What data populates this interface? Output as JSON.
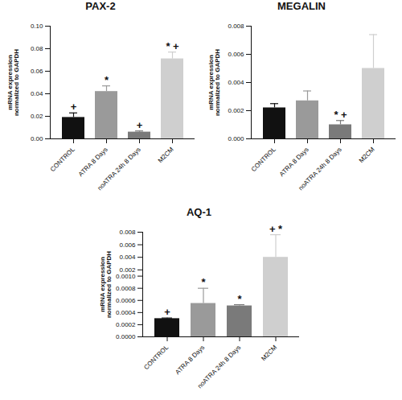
{
  "chart_data": [
    {
      "type": "bar",
      "title": "PAX-2",
      "y_label": "mRNA expression normalized to GAPDH",
      "categories": [
        "CONTROL",
        "ATRA 8 Days",
        "noATRA 24h 8 Days",
        "M2CM"
      ],
      "values": [
        0.019,
        0.042,
        0.006,
        0.071
      ],
      "errors": [
        0.004,
        0.005,
        0.001,
        0.006
      ],
      "annotations": [
        "+",
        "*",
        "+",
        "* +"
      ],
      "colors": [
        "#111111",
        "#9a9a9a",
        "#7a7a7a",
        "#cfcfcf"
      ],
      "ylim": [
        0,
        0.1
      ],
      "yticks": [
        {
          "value": 0,
          "label": "0.00"
        },
        0.02,
        0.04,
        0.06,
        0.08,
        {
          "value": 0.1,
          "label": "0.10"
        }
      ]
    },
    {
      "type": "bar",
      "title": "MEGALIN",
      "y_label": "mRNA expression normalized to GAPDH",
      "categories": [
        "CONTROL",
        "ATRA 8 Days",
        "noATRA 24h 8 Days",
        "M2CM"
      ],
      "values": [
        0.0022,
        0.0027,
        0.001,
        0.005
      ],
      "errors": [
        0.0003,
        0.0007,
        0.0003,
        0.0024
      ],
      "annotations": [
        null,
        null,
        "* +",
        null
      ],
      "colors": [
        "#111111",
        "#9a9a9a",
        "#7a7a7a",
        "#cfcfcf"
      ],
      "ylim": [
        0,
        0.008
      ],
      "yticks": [
        {
          "value": 0,
          "label": "0.000"
        },
        0.002,
        0.004,
        0.006,
        0.008
      ]
    },
    {
      "type": "bar",
      "title": "AQ-1",
      "y_label": "mRNA expression normalized to GAPDH",
      "categories": [
        "CONTROL",
        "ATRA 8 Days",
        "noATRA 24h 8 Days",
        "M2CM"
      ],
      "values": [
        0.0003,
        0.00055,
        0.00051,
        0.004
      ],
      "errors": [
        1e-05,
        0.00025,
        2e-05,
        0.0036
      ],
      "annotations": [
        "+",
        "*",
        "*",
        "+ *"
      ],
      "colors": [
        "#111111",
        "#9a9a9a",
        "#7a7a7a",
        "#cfcfcf"
      ],
      "ylim": [
        0,
        0.008
      ],
      "yticks": [
        {
          "value": 0,
          "label": "0.0000"
        },
        0.0002,
        0.0004,
        0.0006,
        0.0008,
        {
          "value": 0.001,
          "label": "0.0010"
        },
        0.002,
        0.004,
        0.006,
        0.008
      ]
    }
  ]
}
